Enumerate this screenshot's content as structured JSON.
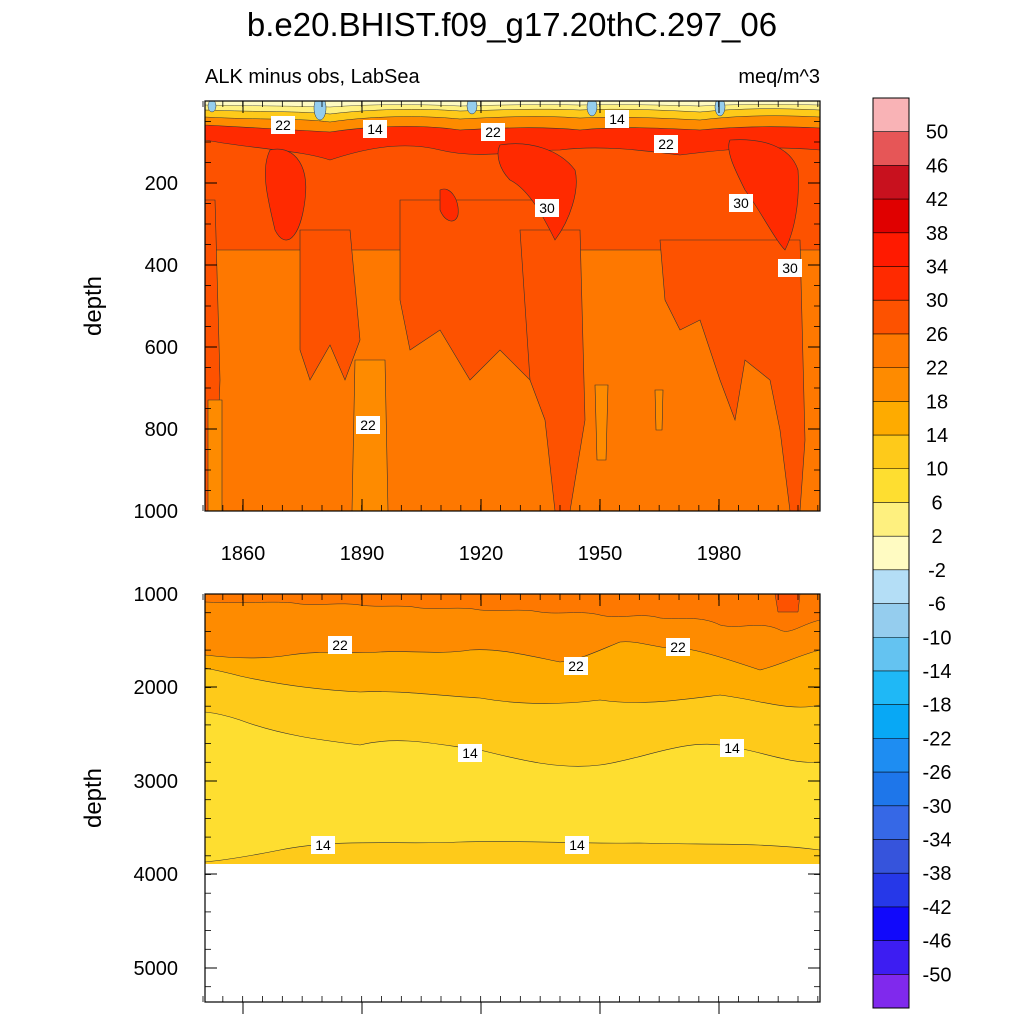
{
  "title": "b.e20.BHIST.f09_g17.20thC.297_06",
  "chart_data": [
    {
      "type": "heatmap",
      "subtitle_left": "ALK minus obs, LabSea",
      "subtitle_right": "meq/m^3",
      "ylabel": "depth",
      "xlabel": "",
      "xlim": [
        1850,
        2005
      ],
      "ylim": [
        0,
        1000
      ],
      "y_reversed": true,
      "x_ticks": [
        "1860",
        "1890",
        "1920",
        "1950",
        "1980"
      ],
      "y_ticks": [
        "200",
        "400",
        "600",
        "800",
        "1000"
      ],
      "contour_labels": [
        "22",
        "14",
        "22",
        "14",
        "22",
        "30",
        "30",
        "30",
        "22"
      ],
      "summary_profile": {
        "depth": [
          0,
          50,
          100,
          150,
          250,
          400,
          600,
          800,
          1000
        ],
        "value": [
          8,
          18,
          26,
          30,
          28,
          26,
          24,
          22,
          22
        ]
      }
    },
    {
      "type": "heatmap",
      "ylabel": "depth",
      "xlabel": "",
      "xlim": [
        1850,
        2005
      ],
      "ylim": [
        1000,
        5400
      ],
      "y_reversed": true,
      "y_ticks": [
        "1000",
        "2000",
        "3000",
        "4000",
        "5000"
      ],
      "data_bottom_depth": 3870,
      "contour_labels": [
        "22",
        "22",
        "22",
        "14",
        "14",
        "14",
        "14"
      ],
      "summary_profile": {
        "depth": [
          1000,
          1600,
          2200,
          2800,
          3500,
          3870
        ],
        "value": [
          22,
          20,
          16,
          12,
          12,
          10
        ]
      }
    }
  ],
  "colorbar": {
    "labels": [
      "50",
      "46",
      "42",
      "38",
      "34",
      "30",
      "26",
      "22",
      "18",
      "14",
      "10",
      "6",
      "2",
      "-2",
      "-6",
      "-10",
      "-14",
      "-18",
      "-22",
      "-26",
      "-30",
      "-34",
      "-38",
      "-42",
      "-46",
      "-50"
    ],
    "colors": [
      "#f9b3b6",
      "#e65657",
      "#c8111e",
      "#e00000",
      "#ff1a00",
      "#ff2a00",
      "#fd5200",
      "#fe7800",
      "#fe8b00",
      "#feab00",
      "#feca1a",
      "#fede30",
      "#fef07f",
      "#fffbc2",
      "#b4def6",
      "#95cdee",
      "#64c3f1",
      "#1fb8f6",
      "#08a8f5",
      "#1e8df2",
      "#1e76ea",
      "#3668e6",
      "#3654dc",
      "#2638e8",
      "#1109fb",
      "#3d1df2",
      "#8029ed"
    ]
  }
}
